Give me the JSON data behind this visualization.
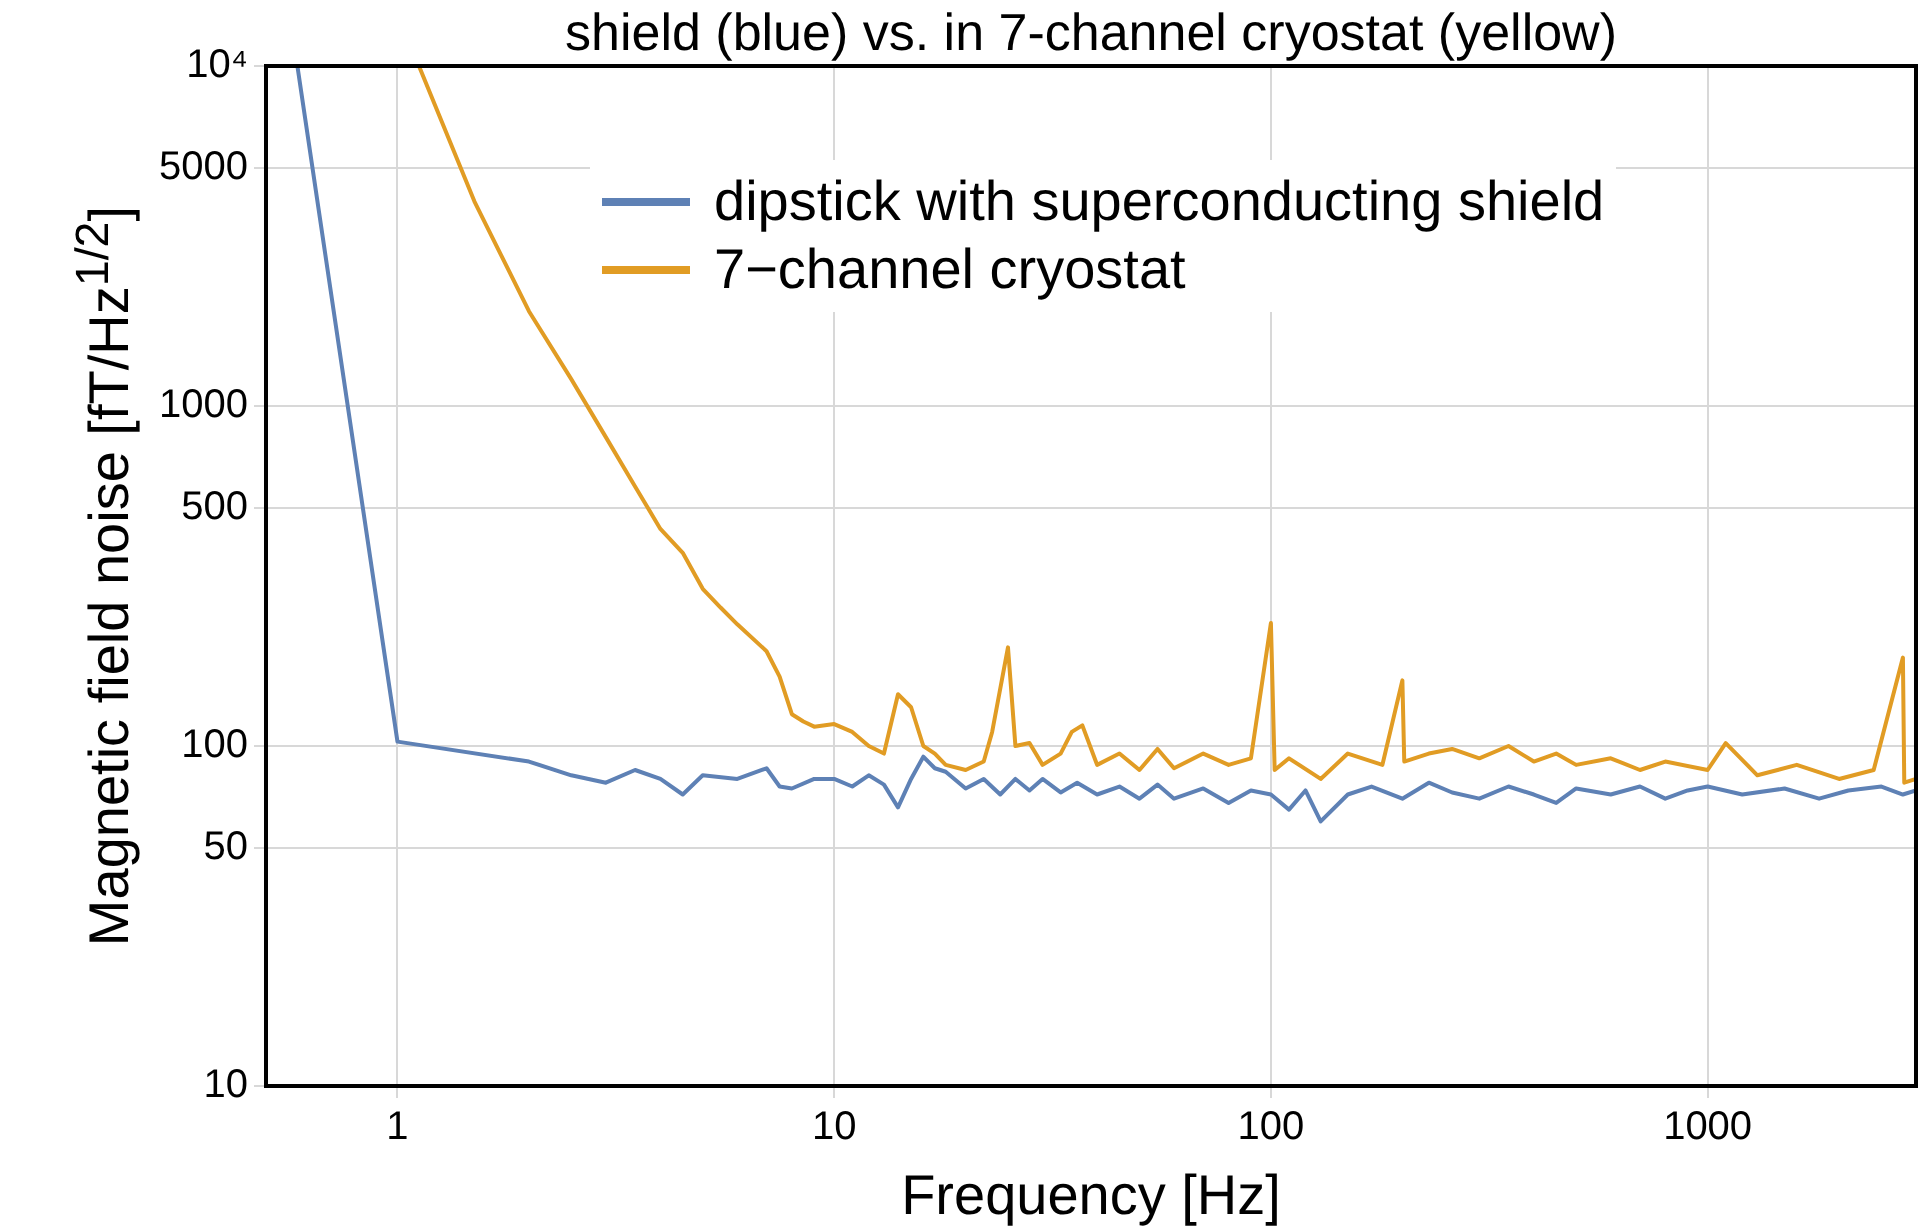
{
  "chart_data": {
    "type": "line",
    "title": "shield (blue) vs. in 7-channel cryostat (yellow)",
    "xlabel": "Frequency [Hz]",
    "ylabel": "Magnetic field noise [fT/Hz$^{1/2}$]",
    "log": "xy",
    "grid": true,
    "legend": "top",
    "marker": "none",
    "line_style": "solid",
    "xlim": [
      0.5,
      3000
    ],
    "xticks": [
      1,
      10,
      100,
      1000
    ],
    "ylim": [
      10,
      10000
    ],
    "yticks": [
      10,
      50,
      100,
      500,
      1000,
      5000,
      {
        "value": 10000,
        "label": "10⁴"
      }
    ],
    "series": [
      {
        "name": "dipstick with superconducting shield",
        "color": "#5e81b5",
        "x": [
          0.59,
          1,
          2,
          2.5,
          3,
          3.5,
          4,
          4.5,
          5,
          6,
          7,
          7.5,
          8,
          9,
          10,
          11,
          12,
          13,
          14,
          15,
          16,
          17,
          18,
          20,
          22,
          24,
          26,
          28,
          30,
          33,
          36,
          40,
          45,
          50,
          55,
          60,
          70,
          80,
          90,
          100,
          110,
          120,
          130,
          150,
          170,
          200,
          230,
          260,
          300,
          350,
          400,
          450,
          500,
          600,
          700,
          800,
          900,
          1000,
          1200,
          1500,
          1800,
          2100,
          2500,
          2800,
          3000
        ],
        "values": [
          10000,
          103,
          90,
          82,
          78,
          85,
          80,
          72,
          82,
          80,
          86,
          76,
          75,
          80,
          80,
          76,
          82,
          77,
          66,
          80,
          93,
          86,
          84,
          75,
          80,
          72,
          80,
          74,
          80,
          73,
          78,
          72,
          76,
          70,
          77,
          70,
          75,
          68,
          74,
          72,
          65,
          74,
          60,
          72,
          76,
          70,
          78,
          73,
          70,
          76,
          72,
          68,
          75,
          72,
          76,
          70,
          74,
          76,
          72,
          75,
          70,
          74,
          76,
          72,
          74
        ]
      },
      {
        "name": "7−channel cryostat",
        "color": "#e19c24",
        "x": [
          1.12,
          1.5,
          2,
          2.5,
          3,
          3.5,
          4,
          4.5,
          5,
          5.5,
          6,
          7,
          7.5,
          8,
          8.5,
          9,
          10,
          11,
          12,
          13,
          14,
          15,
          16,
          17,
          18,
          20,
          22,
          23,
          25,
          26,
          28,
          30,
          33,
          35,
          37,
          40,
          45,
          50,
          55,
          60,
          70,
          80,
          90,
          100,
          102,
          110,
          130,
          150,
          180,
          200,
          202,
          230,
          260,
          300,
          350,
          400,
          450,
          500,
          600,
          700,
          800,
          1000,
          1100,
          1300,
          1600,
          2000,
          2400,
          2800,
          2820,
          3000
        ],
        "values": [
          10000,
          4000,
          1900,
          1200,
          810,
          580,
          435,
          370,
          290,
          255,
          228,
          190,
          160,
          124,
          118,
          114,
          116,
          110,
          100,
          95,
          142,
          130,
          100,
          95,
          88,
          85,
          90,
          110,
          195,
          100,
          102,
          88,
          95,
          110,
          115,
          88,
          95,
          85,
          98,
          86,
          95,
          88,
          92,
          230,
          85,
          92,
          80,
          95,
          88,
          156,
          90,
          95,
          98,
          92,
          100,
          90,
          95,
          88,
          92,
          85,
          90,
          85,
          102,
          82,
          88,
          80,
          85,
          182,
          78,
          80
        ]
      }
    ]
  }
}
